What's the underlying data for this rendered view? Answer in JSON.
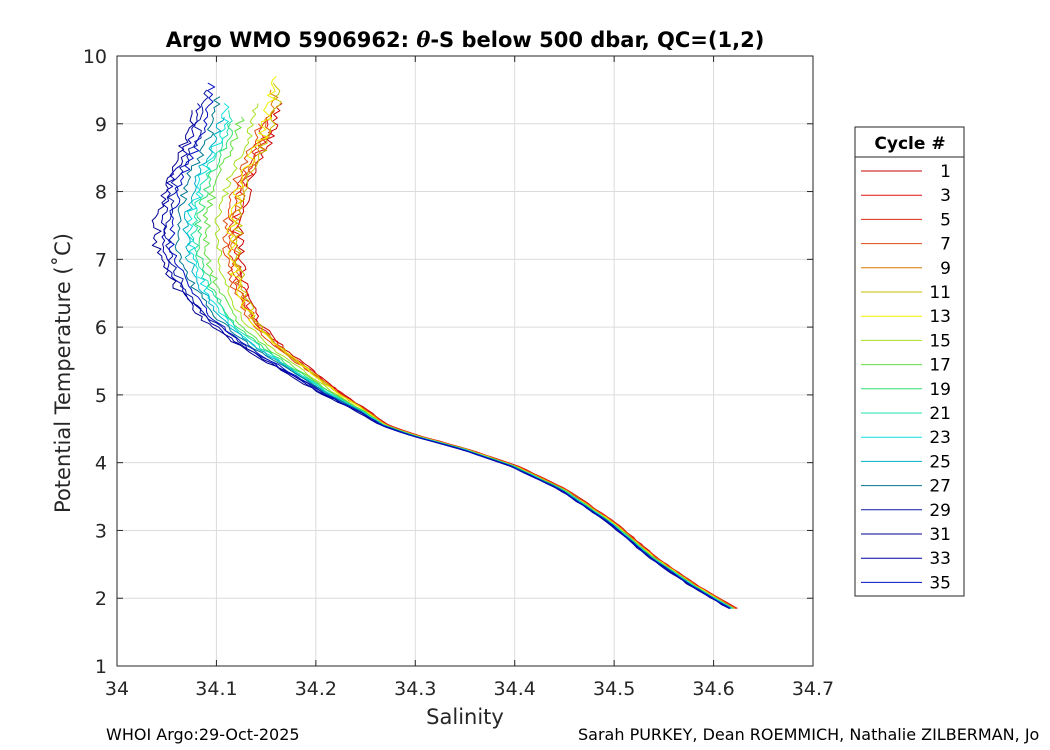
{
  "chart_data": {
    "type": "line",
    "title_prefix": "Argo WMO 5906962: ",
    "title_theta": "θ",
    "title_suffix": "-S below 500 dbar,  QC=(1,2)",
    "xlabel": "Salinity",
    "ylabel": "Potential Temperature (˚C)",
    "xlim": [
      34.0,
      34.7
    ],
    "ylim": [
      1,
      10
    ],
    "xticks": [
      "34",
      "34.1",
      "34.2",
      "34.3",
      "34.4",
      "34.5",
      "34.6",
      "34.7"
    ],
    "yticks": [
      "1",
      "2",
      "3",
      "4",
      "5",
      "6",
      "7",
      "8",
      "9",
      "10"
    ],
    "grid": true,
    "legend": {
      "title": "Cycle #",
      "placement": "right",
      "entries": [
        {
          "label": "1",
          "color": "#c80000"
        },
        {
          "label": "3",
          "color": "#e01010"
        },
        {
          "label": "5",
          "color": "#e02a10"
        },
        {
          "label": "7",
          "color": "#e04a10"
        },
        {
          "label": "9",
          "color": "#e07800"
        },
        {
          "label": "11",
          "color": "#c8c000"
        },
        {
          "label": "13",
          "color": "#f0f000"
        },
        {
          "label": "15",
          "color": "#a8e020"
        },
        {
          "label": "17",
          "color": "#60e040"
        },
        {
          "label": "19",
          "color": "#30e070"
        },
        {
          "label": "21",
          "color": "#20e0b0"
        },
        {
          "label": "23",
          "color": "#10e0e0"
        },
        {
          "label": "25",
          "color": "#00b0c8"
        },
        {
          "label": "27",
          "color": "#007890"
        },
        {
          "label": "29",
          "color": "#0a1aa0"
        },
        {
          "label": "31",
          "color": "#000090"
        },
        {
          "label": "33",
          "color": "#0000a8"
        },
        {
          "label": "35",
          "color": "#0010c0"
        }
      ]
    },
    "base_curve": {
      "s": [
        34.62,
        34.58,
        34.54,
        34.5,
        34.45,
        34.4,
        34.35,
        34.3,
        34.27,
        34.25,
        34.22,
        34.18,
        34.15,
        34.12,
        34.1,
        34.09,
        34.09,
        34.1,
        34.12,
        34.13
      ],
      "t": [
        1.85,
        2.2,
        2.6,
        3.1,
        3.6,
        3.95,
        4.2,
        4.4,
        4.55,
        4.75,
        5.0,
        5.4,
        5.7,
        6.1,
        6.6,
        7.1,
        7.6,
        8.2,
        8.8,
        9.4
      ]
    },
    "series": [
      {
        "name": "1",
        "ds_warm": 0.035,
        "ds_cold": 0.003,
        "t_top": 9.3,
        "jitter": 0.004
      },
      {
        "name": "3",
        "ds_warm": 0.03,
        "ds_cold": 0.003,
        "t_top": 9.2,
        "jitter": 0.005
      },
      {
        "name": "5",
        "ds_warm": 0.025,
        "ds_cold": 0.002,
        "t_top": 9.1,
        "jitter": 0.004
      },
      {
        "name": "7",
        "ds_warm": 0.02,
        "ds_cold": 0.002,
        "t_top": 9.0,
        "jitter": 0.004
      },
      {
        "name": "9",
        "ds_warm": 0.028,
        "ds_cold": 0.001,
        "t_top": 9.5,
        "jitter": 0.005
      },
      {
        "name": "11",
        "ds_warm": 0.032,
        "ds_cold": 0.0,
        "t_top": 9.6,
        "jitter": 0.005
      },
      {
        "name": "13",
        "ds_warm": 0.026,
        "ds_cold": 0.0,
        "t_top": 9.7,
        "jitter": 0.006
      },
      {
        "name": "15",
        "ds_warm": 0.012,
        "ds_cold": -0.001,
        "t_top": 9.3,
        "jitter": 0.004
      },
      {
        "name": "17",
        "ds_warm": 0.0,
        "ds_cold": -0.001,
        "t_top": 9.1,
        "jitter": 0.004
      },
      {
        "name": "19",
        "ds_warm": -0.008,
        "ds_cold": -0.001,
        "t_top": 9.0,
        "jitter": 0.004
      },
      {
        "name": "21",
        "ds_warm": -0.012,
        "ds_cold": -0.002,
        "t_top": 9.2,
        "jitter": 0.004
      },
      {
        "name": "23",
        "ds_warm": -0.016,
        "ds_cold": -0.002,
        "t_top": 9.3,
        "jitter": 0.005
      },
      {
        "name": "25",
        "ds_warm": -0.02,
        "ds_cold": -0.003,
        "t_top": 9.1,
        "jitter": 0.004
      },
      {
        "name": "27",
        "ds_warm": -0.028,
        "ds_cold": -0.003,
        "t_top": 9.4,
        "jitter": 0.004
      },
      {
        "name": "29",
        "ds_warm": -0.04,
        "ds_cold": -0.004,
        "t_top": 9.5,
        "jitter": 0.005
      },
      {
        "name": "31",
        "ds_warm": -0.05,
        "ds_cold": -0.005,
        "t_top": 9.2,
        "jitter": 0.005
      },
      {
        "name": "33",
        "ds_warm": -0.045,
        "ds_cold": -0.004,
        "t_top": 9.3,
        "jitter": 0.004
      },
      {
        "name": "35",
        "ds_warm": -0.035,
        "ds_cold": -0.004,
        "t_top": 9.6,
        "jitter": 0.004
      }
    ]
  },
  "footer": {
    "left": "WHOI Argo:29-Oct-2025",
    "right": "Sarah PURKEY, Dean ROEMMICH, Nathalie ZILBERMAN, Jo"
  }
}
